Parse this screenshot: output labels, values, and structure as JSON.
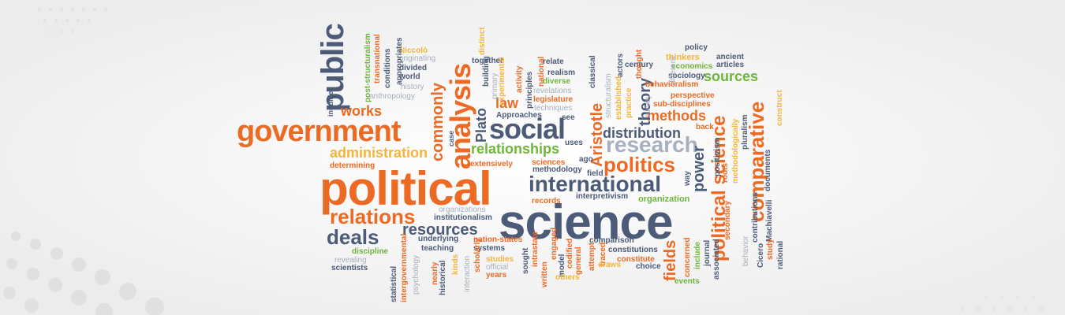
{
  "palette": {
    "orange": "#ec6a23",
    "slate": "#4b5b78",
    "green": "#6fb53a",
    "yellow": "#f4b53a",
    "gray": "#a6b0be",
    "red": "#d94f23"
  },
  "words": [
    {
      "text": "political"
    },
    {
      "text": "science"
    },
    {
      "text": "government"
    },
    {
      "text": "public"
    },
    {
      "text": "analysis"
    },
    {
      "text": "social"
    },
    {
      "text": "international"
    },
    {
      "text": "research"
    },
    {
      "text": "relations"
    },
    {
      "text": "deals"
    },
    {
      "text": "politics"
    },
    {
      "text": "comparative"
    },
    {
      "text": "political science"
    },
    {
      "text": "works"
    },
    {
      "text": "administration"
    },
    {
      "text": "commonly"
    },
    {
      "text": "relationships"
    },
    {
      "text": "distribution"
    },
    {
      "text": "methods"
    },
    {
      "text": "sources"
    },
    {
      "text": "theory"
    },
    {
      "text": "Aristotle"
    },
    {
      "text": "Plato"
    },
    {
      "text": "law"
    },
    {
      "text": "resources"
    },
    {
      "text": "fields"
    },
    {
      "text": "power"
    },
    {
      "text": "determining"
    },
    {
      "text": "organization"
    },
    {
      "text": "policy"
    },
    {
      "text": "thinkers"
    },
    {
      "text": "ancient"
    },
    {
      "text": "articles"
    },
    {
      "text": "economics"
    },
    {
      "text": "sociology"
    },
    {
      "text": "century"
    },
    {
      "text": "behavioralism"
    },
    {
      "text": "perspective"
    },
    {
      "text": "sub-disciplines"
    },
    {
      "text": "back"
    },
    {
      "text": "pluralism"
    },
    {
      "text": "methodologically"
    },
    {
      "text": "Machiavelli"
    },
    {
      "text": "documents"
    },
    {
      "text": "construct"
    },
    {
      "text": "relate"
    },
    {
      "text": "realism"
    },
    {
      "text": "diverse"
    },
    {
      "text": "revelations"
    },
    {
      "text": "legislature"
    },
    {
      "text": "techniques"
    },
    {
      "text": "Approaches"
    },
    {
      "text": "see"
    },
    {
      "text": "together"
    },
    {
      "text": "Niccolò"
    },
    {
      "text": "originating"
    },
    {
      "text": "divided"
    },
    {
      "text": "world"
    },
    {
      "text": "history"
    },
    {
      "text": "anthropology"
    },
    {
      "text": "appropriates"
    },
    {
      "text": "conditions"
    },
    {
      "text": "transnational"
    },
    {
      "text": "post-structuralism"
    },
    {
      "text": "inquiries"
    },
    {
      "text": "distinct"
    },
    {
      "text": "building"
    },
    {
      "text": "primary"
    },
    {
      "text": "experimental"
    },
    {
      "text": "activity"
    },
    {
      "text": "national"
    },
    {
      "text": "principles"
    },
    {
      "text": "classical"
    },
    {
      "text": "structuralism"
    },
    {
      "text": "established"
    },
    {
      "text": "actors"
    },
    {
      "text": "practice"
    },
    {
      "text": "thought"
    },
    {
      "text": "survey"
    },
    {
      "text": "different"
    },
    {
      "text": "uses"
    },
    {
      "text": "ago"
    },
    {
      "text": "field"
    },
    {
      "text": "sciences"
    },
    {
      "text": "extensively"
    },
    {
      "text": "methodology"
    },
    {
      "text": "case"
    },
    {
      "text": "interpretivism"
    },
    {
      "text": "records"
    },
    {
      "text": "way"
    },
    {
      "text": "positivism"
    },
    {
      "text": "roots"
    },
    {
      "text": "organizations"
    },
    {
      "text": "institutionalism"
    },
    {
      "text": "underlying"
    },
    {
      "text": "nation-states"
    },
    {
      "text": "teaching"
    },
    {
      "text": "systems"
    },
    {
      "text": "comparison"
    },
    {
      "text": "constitutions"
    },
    {
      "text": "constitute"
    },
    {
      "text": "discipline"
    },
    {
      "text": "revealing"
    },
    {
      "text": "scientists"
    },
    {
      "text": "statistical"
    },
    {
      "text": "intergovernmental"
    },
    {
      "text": "psychology"
    },
    {
      "text": "nearly"
    },
    {
      "text": "historical"
    },
    {
      "text": "kinds"
    },
    {
      "text": "interaction"
    },
    {
      "text": "scholarly"
    },
    {
      "text": "studies"
    },
    {
      "text": "official"
    },
    {
      "text": "years"
    },
    {
      "text": "sought"
    },
    {
      "text": "intrastate"
    },
    {
      "text": "written"
    },
    {
      "text": "engaged"
    },
    {
      "text": "model"
    },
    {
      "text": "codified"
    },
    {
      "text": "general"
    },
    {
      "text": "others"
    },
    {
      "text": "attempt"
    },
    {
      "text": "traced"
    },
    {
      "text": "draws"
    },
    {
      "text": "choice"
    },
    {
      "text": "concerned"
    },
    {
      "text": "include"
    },
    {
      "text": "journal"
    },
    {
      "text": "events"
    },
    {
      "text": "associated"
    },
    {
      "text": "behavior"
    },
    {
      "text": "contributions"
    },
    {
      "text": "Cicero"
    },
    {
      "text": "study"
    },
    {
      "text": "rational"
    },
    {
      "text": "secondary"
    }
  ]
}
